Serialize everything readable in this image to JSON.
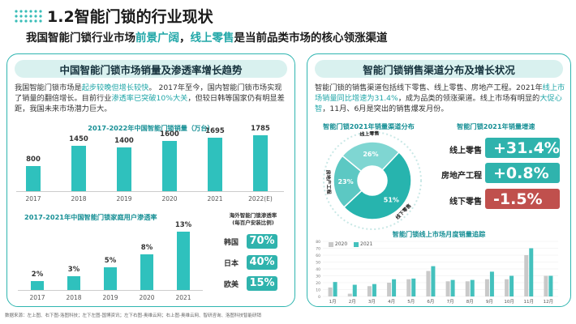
{
  "header": {
    "title": "1.2智能门锁的行业现状",
    "subtitle_a": "我国智能门锁行业市场",
    "subtitle_b": "前景广阔",
    "subtitle_c": "，",
    "subtitle_d": "线上零售",
    "subtitle_e": "是当前品类市场的核心领涨渠道"
  },
  "left": {
    "heading": "中国智能门锁市场销量及渗透率增长趋势",
    "para_a": "我国智能门锁市场是",
    "para_b": "起步较晚但增长较快",
    "para_c": "。 2017年至今，国内智能门锁市场实现了销量的翻倍增长。目前行业",
    "para_d": "渗透率已突破10%大关",
    "para_e": "，但较日韩等国家仍有明显差距，我国未来市场潜力巨大。",
    "sales_title": "2017-2022年中国智能门锁销量（万台）",
    "pen_title": "2017-2021年中国智能门锁家庭用户渗透率",
    "overseas_title_1": "海外智能门锁渗透率",
    "overseas_title_2": "(每百户安装比例)"
  },
  "right": {
    "heading": "智能门锁销售渠道分布及增长状况",
    "para_a": "智能门锁的销售渠道包括线下零售、线上零售、房地产工程。2021年",
    "para_b": "线上市场销量同比增速为31.4%",
    "para_c": "，成为品类的领涨渠道。线上市场有明显的",
    "para_d": "大促心智",
    "para_e": "，11月、6月是突出的销售爆发月份。",
    "donut_title": "智能门锁2021年销量渠道分布",
    "growth_title": "智能门锁2021年销量增速",
    "monthly_title": "智能门锁线上市场月度销量追踪",
    "legend_2020": "2020",
    "legend_2021": "2021"
  },
  "donut": {
    "segments": [
      {
        "label": "线上零售",
        "pct": "26%",
        "value": 26
      },
      {
        "label": "线下零售",
        "pct": "51%",
        "value": 51
      },
      {
        "label": "房地产工程",
        "pct": "23%",
        "value": 23
      }
    ]
  },
  "growth": [
    {
      "label": "线上零售",
      "value": "+31.4%",
      "color": "#2fb3ad"
    },
    {
      "label": "房地产工程",
      "value": "+0.8%",
      "color": "#2fb3ad"
    },
    {
      "label": "线下零售",
      "value": "-1.5%",
      "color": "#c0504d"
    }
  ],
  "overseas": [
    {
      "country": "韩国",
      "value": "70%"
    },
    {
      "country": "日本",
      "value": "40%"
    },
    {
      "country": "欧美",
      "value": "15%"
    }
  ],
  "months": [
    "1月",
    "2月",
    "3月",
    "4月",
    "5月",
    "6月",
    "7月",
    "8月",
    "9月",
    "10月",
    "11月",
    "12月"
  ],
  "source": "数据来源：左上图、右下图-洛图科技；左下左图-国博资讯；左下右图-奥维云网；右上图-奥维云网、智研咨询、洛图科技智能研销",
  "chart_data": [
    {
      "type": "bar",
      "title": "2017-2022年中国智能门锁销量（万台）",
      "categories": [
        "2017",
        "2018",
        "2019",
        "2020",
        "2021",
        "2022(E)"
      ],
      "values": [
        800,
        1450,
        1400,
        1600,
        1695,
        1785
      ],
      "labels": [
        "800",
        "1450",
        "1400",
        "1600",
        "1695",
        "1785"
      ]
    },
    {
      "type": "bar",
      "title": "2017-2021年中国智能门锁家庭用户渗透率",
      "categories": [
        "2017",
        "2018",
        "2019",
        "2020",
        "2021"
      ],
      "values": [
        2,
        3,
        5,
        8,
        13
      ],
      "labels": [
        "2%",
        "3%",
        "5%",
        "8%",
        "13%"
      ]
    },
    {
      "type": "bar",
      "title": "智能门锁线上市场月度销量追踪",
      "categories": [
        "1月",
        "2月",
        "3月",
        "4月",
        "5月",
        "6月",
        "7月",
        "8月",
        "9月",
        "10月",
        "11月",
        "12月"
      ],
      "ylim": [
        0,
        80
      ],
      "yticks": [
        "0",
        "10",
        "20",
        "30",
        "40",
        "50",
        "60",
        "70",
        "80"
      ],
      "series": [
        {
          "name": "2020",
          "values": [
            13,
            4,
            15,
            20,
            25,
            37,
            22,
            22,
            25,
            25,
            60,
            30
          ]
        },
        {
          "name": "2021",
          "values": [
            21,
            17,
            18,
            25,
            26,
            44,
            24,
            24,
            36,
            30,
            70,
            30
          ]
        }
      ]
    }
  ]
}
